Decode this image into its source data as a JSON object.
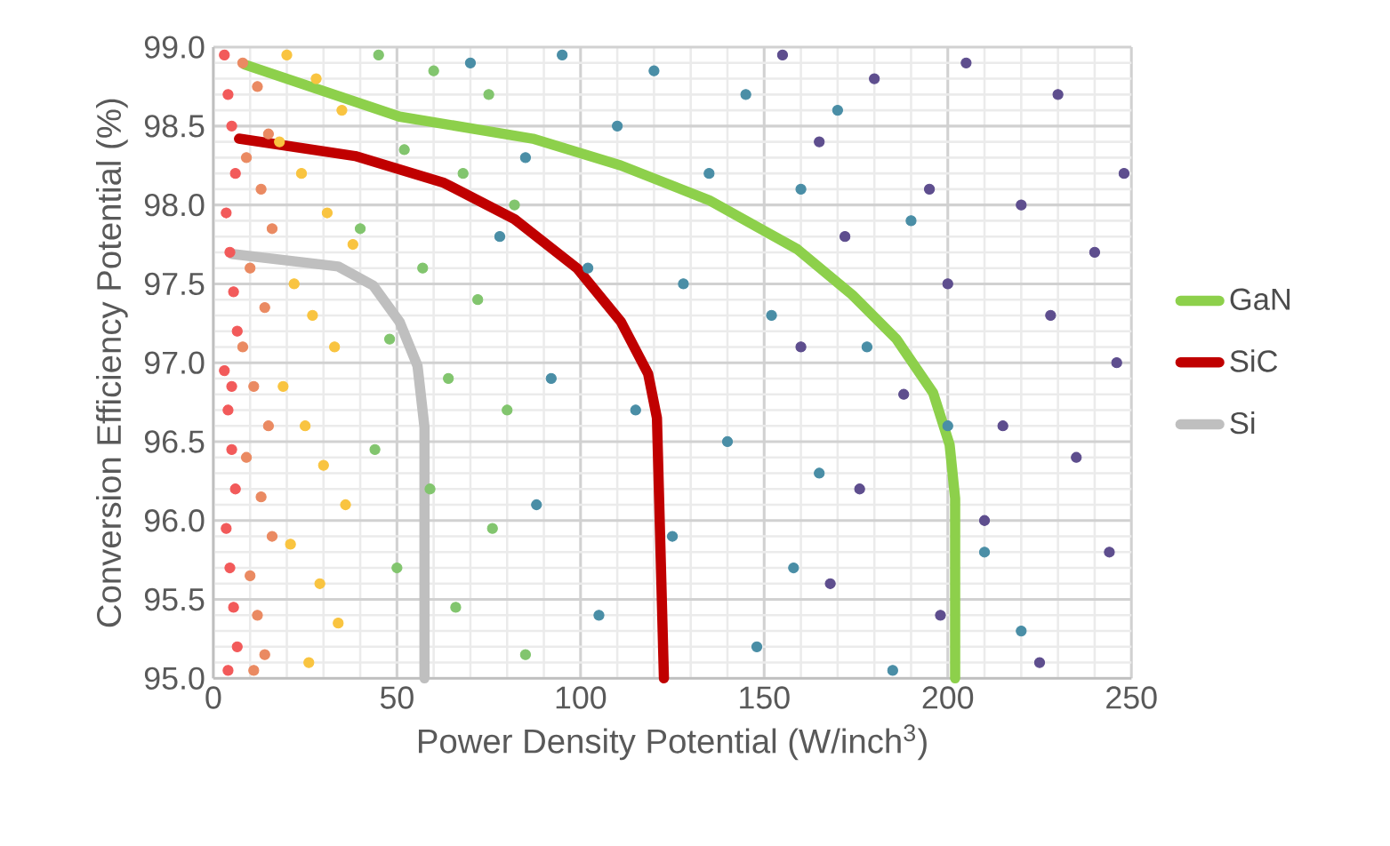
{
  "chart_data": {
    "type": "line",
    "xlabel": "Power Density Potential (W/inch$^{3}$)",
    "ylabel": "Conversion Efficiency Potential (%)",
    "xlim": [
      0,
      250
    ],
    "xticks": [
      0,
      50,
      100,
      150,
      200,
      250
    ],
    "ylim": [
      95,
      99
    ],
    "yticks": [
      {
        "value": 95,
        "label": "95.0"
      },
      {
        "value": 95.5,
        "label": "95.5"
      },
      {
        "value": 96,
        "label": "96.0"
      },
      {
        "value": 96.5,
        "label": "96.5"
      },
      {
        "value": 97,
        "label": "97.0"
      },
      {
        "value": 97.5,
        "label": "97.5"
      },
      {
        "value": 98,
        "label": "98.0"
      },
      {
        "value": 98.5,
        "label": "98.5"
      },
      {
        "value": 99,
        "label": "99.0"
      }
    ],
    "grid": true,
    "legend": "right",
    "series": [
      {
        "type": "scatter",
        "color": "#f25a5a",
        "x": [
          3,
          4,
          5,
          6,
          3.5,
          4.5,
          5.5,
          6.5,
          3,
          4,
          5,
          6,
          3.5,
          4.5,
          5.5,
          6.5,
          4,
          5
        ],
        "values": [
          98.95,
          98.7,
          98.5,
          98.2,
          97.95,
          97.7,
          97.45,
          97.2,
          96.95,
          96.7,
          96.45,
          96.2,
          95.95,
          95.7,
          95.45,
          95.2,
          95.05,
          96.85
        ]
      },
      {
        "type": "scatter",
        "color": "#ea8a62",
        "x": [
          8,
          12,
          15,
          9,
          13,
          16,
          10,
          14,
          8,
          11,
          15,
          9,
          13,
          16,
          10,
          12,
          14,
          11
        ],
        "values": [
          98.9,
          98.75,
          98.45,
          98.3,
          98.1,
          97.85,
          97.6,
          97.35,
          97.1,
          96.85,
          96.6,
          96.4,
          96.15,
          95.9,
          95.65,
          95.4,
          95.15,
          95.05
        ]
      },
      {
        "type": "scatter",
        "color": "#f9c440",
        "x": [
          20,
          28,
          35,
          18,
          24,
          31,
          38,
          22,
          27,
          33,
          19,
          25,
          30,
          36,
          21,
          29,
          34,
          26
        ],
        "values": [
          98.95,
          98.8,
          98.6,
          98.4,
          98.2,
          97.95,
          97.75,
          97.5,
          97.3,
          97.1,
          96.85,
          96.6,
          96.35,
          96.1,
          95.85,
          95.6,
          95.35,
          95.1
        ]
      },
      {
        "type": "scatter",
        "color": "#82c56e",
        "x": [
          45,
          60,
          75,
          52,
          68,
          82,
          40,
          57,
          72,
          48,
          64,
          80,
          44,
          59,
          76,
          50,
          66,
          85
        ],
        "values": [
          98.95,
          98.85,
          98.7,
          98.35,
          98.2,
          98.0,
          97.85,
          97.6,
          97.4,
          97.15,
          96.9,
          96.7,
          96.45,
          96.2,
          95.95,
          95.7,
          95.45,
          95.15
        ]
      },
      {
        "type": "scatter",
        "color": "#4a8ea6",
        "x": [
          70,
          95,
          120,
          145,
          170,
          85,
          110,
          135,
          160,
          190,
          78,
          102,
          128,
          152,
          178,
          92,
          115,
          140,
          165,
          200,
          88,
          125,
          158,
          210,
          105,
          148,
          185,
          220
        ],
        "values": [
          98.9,
          98.95,
          98.85,
          98.7,
          98.6,
          98.3,
          98.5,
          98.2,
          98.1,
          97.9,
          97.8,
          97.6,
          97.5,
          97.3,
          97.1,
          96.9,
          96.7,
          96.5,
          96.3,
          96.6,
          96.1,
          95.9,
          95.7,
          95.8,
          95.4,
          95.2,
          95.05,
          95.3
        ]
      },
      {
        "type": "scatter",
        "color": "#5e4e8e",
        "x": [
          155,
          180,
          205,
          230,
          248,
          165,
          195,
          220,
          240,
          172,
          200,
          228,
          246,
          160,
          188,
          215,
          235,
          176,
          210,
          244,
          168,
          198,
          225
        ],
        "values": [
          98.95,
          98.8,
          98.9,
          98.7,
          98.2,
          98.4,
          98.1,
          98.0,
          97.7,
          97.8,
          97.5,
          97.3,
          97.0,
          97.1,
          96.8,
          96.6,
          96.4,
          96.2,
          96.0,
          95.8,
          95.6,
          95.4,
          95.1
        ]
      },
      {
        "name": "GaN",
        "color": "#8dd04b",
        "x": [
          8.5,
          50.7,
          87,
          111,
          135,
          159,
          174,
          186,
          196,
          200.5,
          202,
          202
        ],
        "values": [
          98.89,
          98.56,
          98.42,
          98.25,
          98.03,
          97.72,
          97.43,
          97.15,
          96.81,
          96.48,
          96.14,
          95.0
        ]
      },
      {
        "name": "SiC",
        "color": "#c00000",
        "x": [
          7,
          38.6,
          62.8,
          82,
          99,
          111,
          118.4,
          120.8,
          122.7
        ],
        "values": [
          98.42,
          98.31,
          98.14,
          97.91,
          97.6,
          97.26,
          96.93,
          96.65,
          95.0
        ]
      },
      {
        "name": "Si",
        "color": "#bfbfbf",
        "x": [
          5,
          34,
          43.5,
          50.7,
          55.6,
          57.5,
          57.5
        ],
        "values": [
          97.69,
          97.61,
          97.49,
          97.26,
          96.98,
          96.59,
          95.0
        ]
      }
    ]
  }
}
